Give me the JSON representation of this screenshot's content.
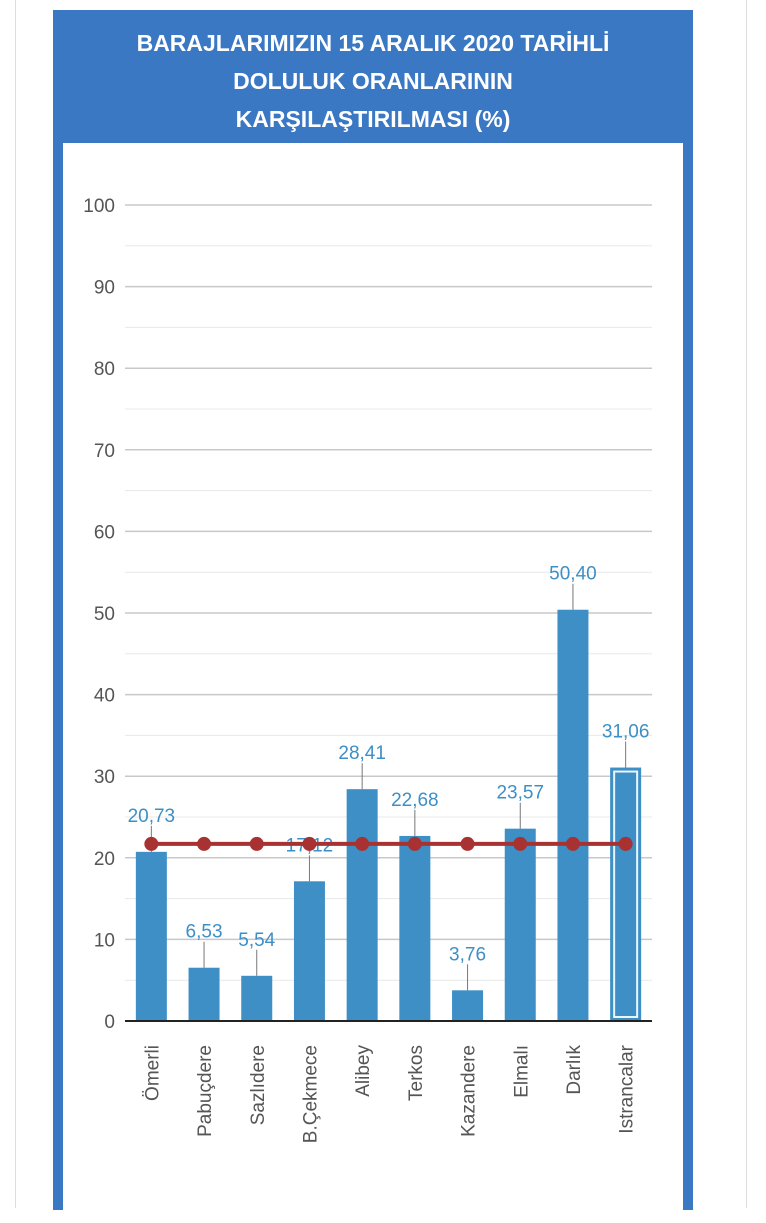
{
  "chart_data": {
    "type": "bar",
    "title": "BARAJLARIMIZIN 15 ARALIK 2020 TARİHLİ DOLULUK ORANLARININ KARŞILAŞTIRILMASI (%)",
    "title_lines": [
      "BARAJLARIMIZIN 15 ARALIK 2020 TARİHLİ",
      "DOLULUK ORANLARININ",
      "KARŞILAŞTIRILMASI (%)"
    ],
    "categories": [
      "Ömerli",
      "Pabuçdere",
      "Sazlıdere",
      "B.Çekmece",
      "Alibey",
      "Terkos",
      "Kazandere",
      "Elmalı",
      "Darlık",
      "Istrancalar"
    ],
    "values": [
      20.73,
      6.53,
      5.54,
      17.12,
      28.41,
      22.68,
      3.76,
      23.57,
      50.4,
      31.06
    ],
    "value_labels": [
      "20,73",
      "6,53",
      "5,54",
      "17,12",
      "28,41",
      "22,68",
      "3,76",
      "23,57",
      "50,40",
      "31,06"
    ],
    "line_series": {
      "values": [
        21.7,
        21.7,
        21.7,
        21.7,
        21.7,
        21.7,
        21.7,
        21.7,
        21.7,
        21.7
      ],
      "color": "#a83232"
    },
    "highlighted_category": "Istrancalar",
    "ylim": [
      0,
      100
    ],
    "yticks": [
      "0",
      "10",
      "20",
      "30",
      "40",
      "50",
      "60",
      "70",
      "80",
      "90",
      "100"
    ],
    "grid": true,
    "xlabel": "",
    "ylabel": "",
    "colors": {
      "bar": "#3d8fc6",
      "label": "#3d8fc6",
      "frame": "#3a78c3",
      "line": "#a83232"
    }
  }
}
